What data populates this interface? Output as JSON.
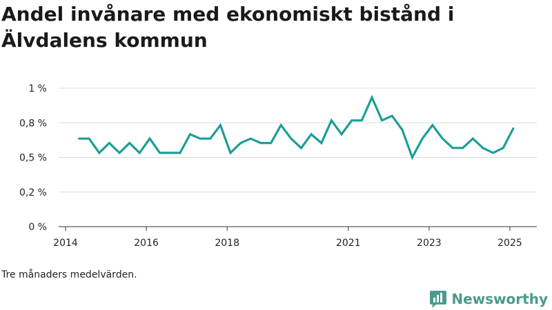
{
  "title": "Andel invånare med ekonomiskt bistånd i Älvdalens kommun",
  "note": "Tre månaders medelvärden.",
  "brand": "Newsworthy",
  "colors": {
    "line": "#1a9e96",
    "grid": "#dcdcdc",
    "axis": "#333333",
    "brand": "#4a9a8e"
  },
  "chart_data": {
    "type": "line",
    "title": "Andel invånare med ekonomiskt bistånd i Älvdalens kommun",
    "xlabel": "",
    "ylabel": "",
    "ylim": [
      0,
      1
    ],
    "y_ticks": [
      {
        "value": 0,
        "label": "0 %"
      },
      {
        "value": 0.25,
        "label": "0,2 %"
      },
      {
        "value": 0.5,
        "label": "0,5 %"
      },
      {
        "value": 0.75,
        "label": "0,8 %"
      },
      {
        "value": 1,
        "label": "1 %"
      }
    ],
    "xlim": [
      "2014-01",
      "2025-09"
    ],
    "x_ticks": [
      {
        "value": "2014-01",
        "label": "2014"
      },
      {
        "value": "2016-01",
        "label": "2016"
      },
      {
        "value": "2018-01",
        "label": "2018"
      },
      {
        "value": "2021-01",
        "label": "2021"
      },
      {
        "value": "2023-01",
        "label": "2023"
      },
      {
        "value": "2025-01",
        "label": "2025"
      }
    ],
    "grid": true,
    "series": [
      {
        "x": [
          "2014-05",
          "2014-08",
          "2014-11",
          "2015-02",
          "2015-05",
          "2015-08",
          "2015-11",
          "2016-02",
          "2016-05",
          "2016-08",
          "2016-11",
          "2017-02",
          "2017-05",
          "2017-08",
          "2017-11",
          "2018-02",
          "2018-05",
          "2018-08",
          "2018-11",
          "2019-02",
          "2019-05",
          "2019-08",
          "2019-11",
          "2020-02",
          "2020-05",
          "2020-08",
          "2020-11",
          "2021-02",
          "2021-05",
          "2021-08",
          "2021-11",
          "2022-02",
          "2022-05",
          "2022-08",
          "2022-11",
          "2023-02",
          "2023-05",
          "2023-08",
          "2023-11",
          "2024-02",
          "2024-05",
          "2024-08",
          "2024-11",
          "2025-02"
        ],
        "values": [
          0.636,
          0.636,
          0.533,
          0.604,
          0.533,
          0.604,
          0.533,
          0.636,
          0.533,
          0.533,
          0.533,
          0.667,
          0.636,
          0.636,
          0.733,
          0.533,
          0.604,
          0.636,
          0.604,
          0.604,
          0.733,
          0.636,
          0.568,
          0.667,
          0.604,
          0.767,
          0.667,
          0.767,
          0.767,
          0.933,
          0.767,
          0.8,
          0.7,
          0.5,
          0.636,
          0.733,
          0.636,
          0.568,
          0.568,
          0.636,
          0.568,
          0.533,
          0.568,
          0.71
        ]
      }
    ]
  }
}
